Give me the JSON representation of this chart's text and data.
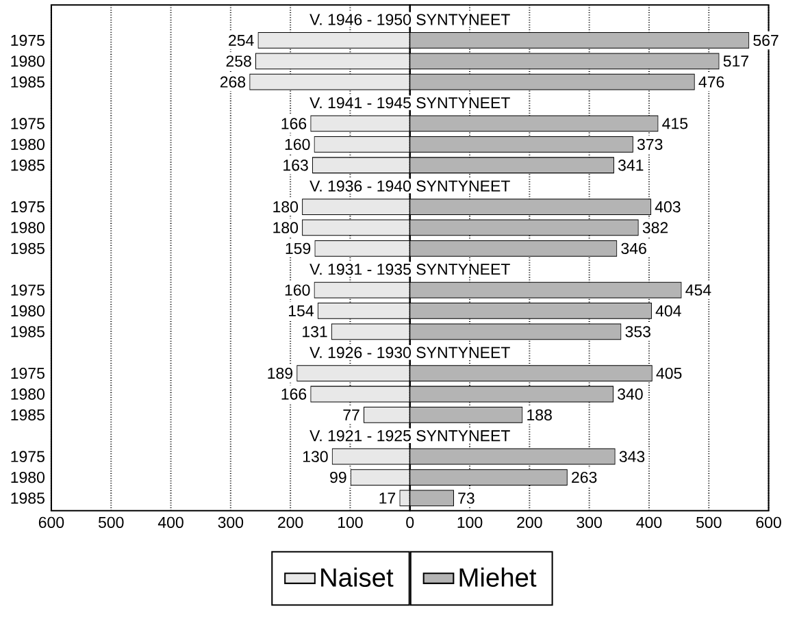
{
  "chart_data": [
    {
      "type": "bar",
      "orientation": "horizontal",
      "categories": [
        "1975",
        "1980",
        "1985",
        "1975",
        "1980",
        "1985",
        "1975",
        "1980",
        "1985",
        "1975",
        "1980",
        "1985",
        "1975",
        "1980",
        "1985",
        "1975",
        "1980",
        "1985"
      ],
      "series": [
        {
          "name": "Naiset",
          "color": "#e8e8e8",
          "values": [
            254,
            258,
            268,
            166,
            160,
            163,
            180,
            180,
            159,
            160,
            154,
            131,
            189,
            166,
            77,
            130,
            99,
            17
          ]
        }
      ],
      "xlim": [
        600,
        0
      ],
      "xticks": [
        600,
        500,
        400,
        300,
        200,
        100,
        {
          "value": 0,
          "label": null
        }
      ],
      "grid": "x",
      "legend": "bottom",
      "data_labels": true
    },
    {
      "type": "bar",
      "orientation": "horizontal",
      "categories": [
        "1975",
        "1980",
        "1985",
        "1975",
        "1980",
        "1985",
        "1975",
        "1980",
        "1985",
        "1975",
        "1980",
        "1985",
        "1975",
        "1980",
        "1985",
        "1975",
        "1980",
        "1985"
      ],
      "series": [
        {
          "name": "Miehet",
          "color": "#b4b4b4",
          "values": [
            567,
            517,
            476,
            415,
            373,
            341,
            403,
            382,
            346,
            454,
            404,
            353,
            405,
            340,
            188,
            343,
            263,
            73
          ]
        }
      ],
      "xlim": [
        0,
        600
      ],
      "xticks": [
        0,
        100,
        200,
        300,
        400,
        500,
        600
      ],
      "annotations": [
        "V. 1946 - 1950  SYNTYNEET",
        "V. 1941 - 1945  SYNTYNEET",
        "V. 1936 - 1940  SYNTYNEET",
        "V. 1931 - 1935  SYNTYNEET",
        "V. 1926 - 1930  SYNTYNEET",
        "V. 1921 - 1925  SYNTYNEET"
      ],
      "grid": "x",
      "legend": "bottom",
      "data_labels": true,
      "tick_labels": "x"
    }
  ]
}
